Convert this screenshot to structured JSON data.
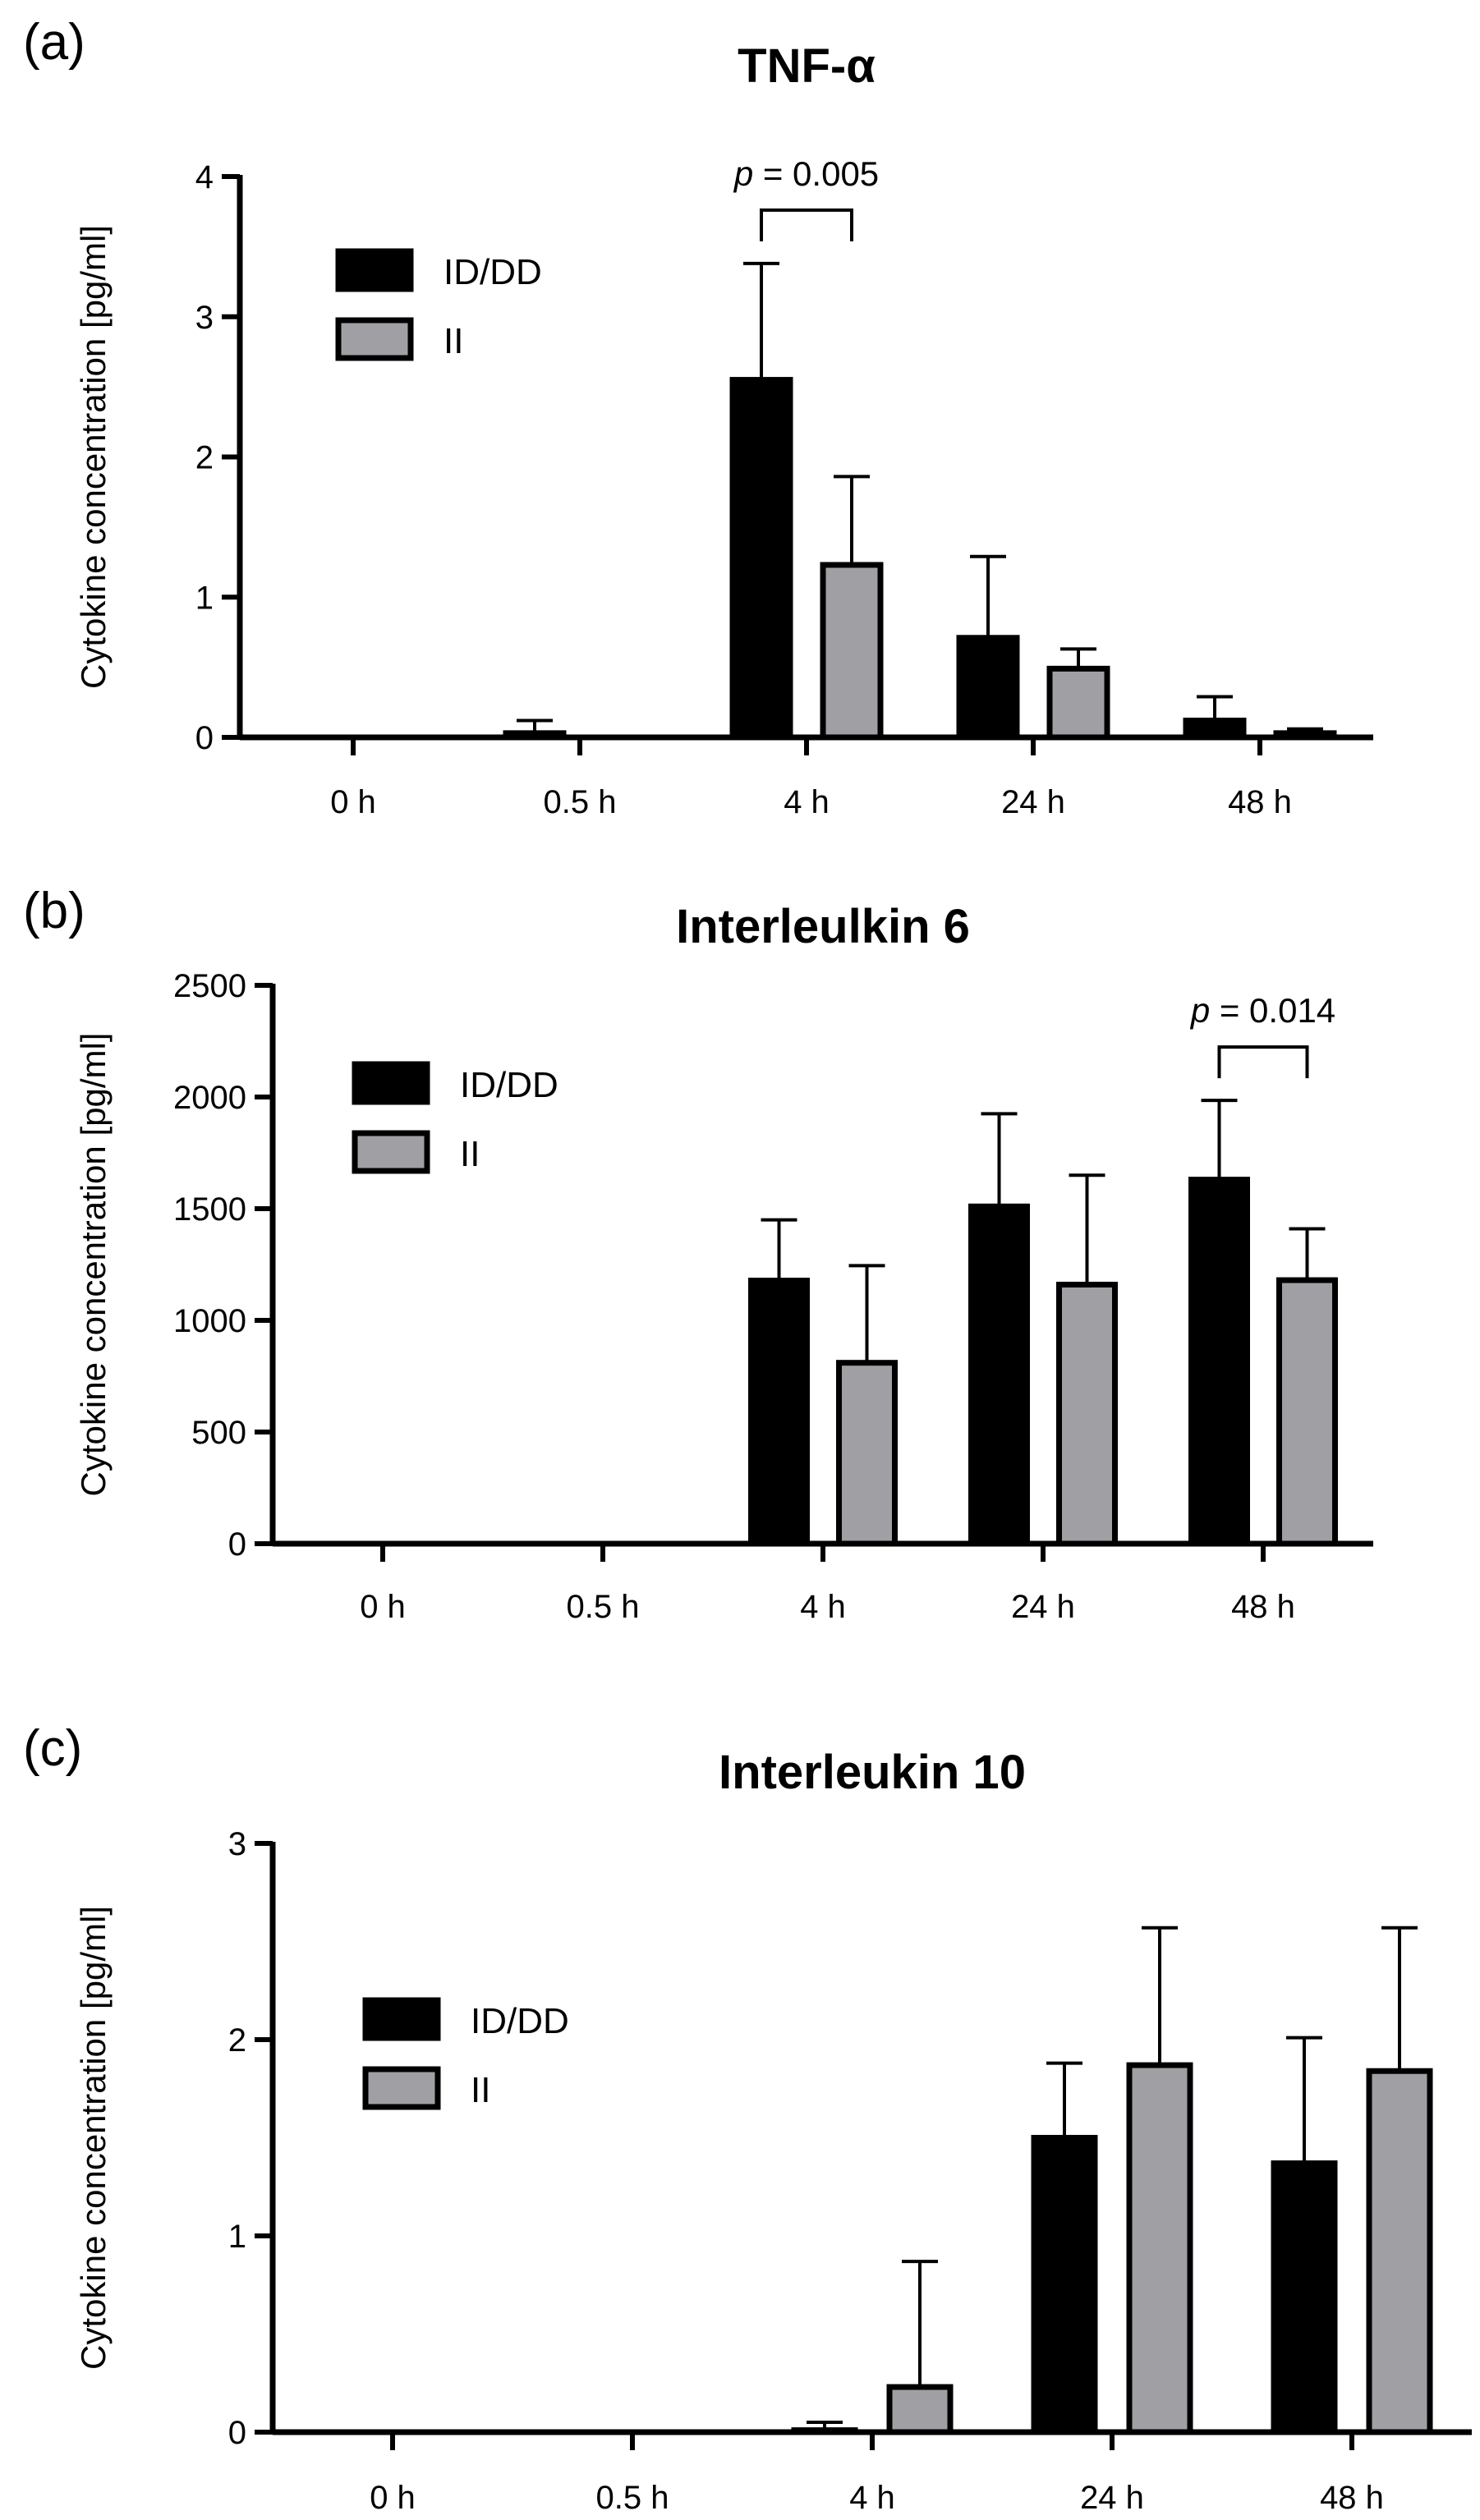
{
  "chart_data": [
    {
      "type": "bar",
      "panel_label": "(a)",
      "title": "TNF-α",
      "ylabel": "Cytokine concentration [pg/ml]",
      "xlabel": "",
      "categories": [
        "0 h",
        "0.5 h",
        "4 h",
        "24 h",
        "48 h"
      ],
      "ylim": [
        0,
        4
      ],
      "yticks": [
        "0",
        "1",
        "2",
        "3",
        "4"
      ],
      "legend_position": "top-left",
      "series": [
        {
          "name": "ID/DD",
          "color": "#000000",
          "values": [
            0,
            0.03,
            2.55,
            0.71,
            0.12
          ],
          "errors": [
            0,
            0.09,
            0.83,
            0.58,
            0.17
          ]
        },
        {
          "name": "II",
          "color": "#a0a0a4",
          "values": [
            0,
            0,
            1.23,
            0.49,
            0.03
          ],
          "errors": [
            0,
            0,
            0.63,
            0.14,
            0.03
          ]
        }
      ],
      "annotations": [
        {
          "category": "4 h",
          "p_symbol": "p",
          "p_text": " = 0.005"
        }
      ]
    },
    {
      "type": "bar",
      "panel_label": "(b)",
      "title": "Interleulkin 6",
      "ylabel": "Cytokine concentration [pg/ml]",
      "xlabel": "",
      "categories": [
        "0 h",
        "0.5 h",
        "4 h",
        "24 h",
        "48 h"
      ],
      "ylim": [
        0,
        2500
      ],
      "yticks": [
        "0",
        "500",
        "1000",
        "1500",
        "2000",
        "2500"
      ],
      "legend_position": "top-left",
      "series": [
        {
          "name": "ID/DD",
          "color": "#000000",
          "values": [
            0,
            0,
            1178,
            1510,
            1630
          ],
          "errors": [
            0,
            0,
            272,
            415,
            355
          ]
        },
        {
          "name": "II",
          "color": "#a0a0a4",
          "values": [
            0,
            0,
            810,
            1160,
            1180
          ],
          "errors": [
            0,
            0,
            435,
            490,
            230
          ]
        }
      ],
      "annotations": [
        {
          "category": "48 h",
          "p_symbol": "p",
          "p_text": " = 0.014"
        }
      ]
    },
    {
      "type": "bar",
      "panel_label": "(c)",
      "title": "Interleukin 10",
      "ylabel": "Cytokine concentration [pg/ml]",
      "xlabel": "",
      "categories": [
        "0 h",
        "0.5 h",
        "4 h",
        "24 h",
        "48 h"
      ],
      "ylim": [
        0,
        3
      ],
      "yticks": [
        "0",
        "1",
        "2",
        "3"
      ],
      "legend_position": "top-left",
      "series": [
        {
          "name": "ID/DD",
          "color": "#000000",
          "values": [
            0,
            0,
            0.01,
            1.5,
            1.37
          ],
          "errors": [
            0,
            0,
            0.04,
            0.38,
            0.64
          ]
        },
        {
          "name": "II",
          "color": "#a0a0a4",
          "values": [
            0,
            0,
            0.23,
            1.87,
            1.84
          ],
          "errors": [
            0,
            0,
            0.64,
            0.7,
            0.73
          ]
        }
      ],
      "annotations": []
    }
  ]
}
